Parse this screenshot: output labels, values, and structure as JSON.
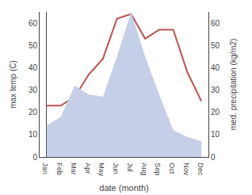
{
  "chart_data": {
    "type": "line",
    "categories": [
      "Jan",
      "Feb",
      "Mar",
      "Apr",
      "May",
      "Jun",
      "Jul",
      "Aug",
      "Sep",
      "Oct",
      "Nov",
      "Dec"
    ],
    "xlabel": "date (month)",
    "ylabel": "max temp (C)",
    "y2label": "med. precipitation (kg/m2)",
    "series": [
      {
        "type": "area",
        "axis": "y2",
        "color": "#c5cfe8",
        "values": [
          14,
          18,
          32,
          28,
          27,
          45,
          65,
          45,
          28,
          12,
          9,
          7
        ]
      },
      {
        "type": "line",
        "axis": "y",
        "color": "#c0504d",
        "values": [
          23,
          23,
          27,
          37,
          44,
          62,
          64,
          53,
          57,
          57,
          38,
          25
        ]
      }
    ],
    "ylim": [
      0,
      65
    ],
    "yticks": [
      0,
      10,
      20,
      30,
      40,
      50,
      60
    ],
    "y2lim": [
      0,
      65
    ],
    "y2ticks": [
      0,
      10,
      20,
      30,
      40,
      50,
      60
    ],
    "grid": false
  }
}
